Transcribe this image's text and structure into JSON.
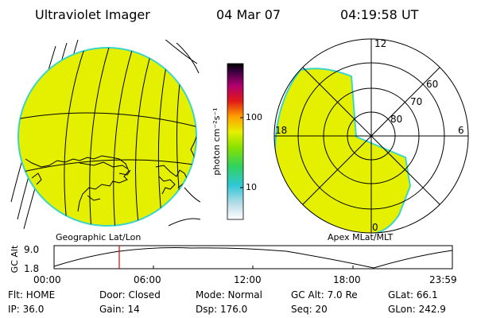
{
  "header": {
    "instrument": "Ultraviolet Imager",
    "date": "04 Mar 07",
    "time": "04:19:58 UT"
  },
  "colors": {
    "aurora_fill": "#e5f000",
    "limb_edge": "#3bd5c8",
    "time_marker": "#e00000"
  },
  "colorbar": {
    "unit_label": "photon cm⁻²s⁻¹",
    "tick_labels": [
      "100",
      "10"
    ],
    "scale": "log"
  },
  "geo_panel": {
    "caption": "Geographic Lat/Lon"
  },
  "polar_panel": {
    "caption": "Apex MLat/MLT",
    "mlt_labels": {
      "top": "12",
      "left": "18",
      "right": "6",
      "bottom": "0"
    },
    "lat_labels": [
      "60",
      "70",
      "80"
    ]
  },
  "altitude_plot": {
    "ylabel": "GC Alt",
    "y_ticks": [
      "9.0",
      "1.8"
    ],
    "x_ticks": [
      "00:00",
      "06:00",
      "12:00",
      "18:00",
      "23:59"
    ],
    "current_time_marker": "04:19:58"
  },
  "status": {
    "row1": {
      "flt": "Flt: HOME",
      "door": "Door: Closed",
      "mode": "Mode: Normal",
      "gc_alt": "GC Alt: 7.0 Re",
      "glat": "GLat:  66.1"
    },
    "row2": {
      "ip": "IP: 36.0",
      "gain": "Gain: 14",
      "dsp": "Dsp:  176.0",
      "seq": "Seq: 20",
      "glon": "GLon: 242.9"
    }
  }
}
